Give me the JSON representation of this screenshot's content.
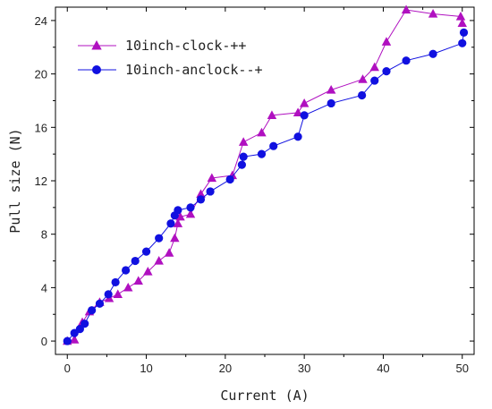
{
  "chart_data": {
    "type": "line",
    "title": "",
    "xlabel": "Current (A)",
    "ylabel": "Pull size (N)",
    "xlim": [
      -1.5,
      51.5
    ],
    "ylim": [
      -1.0,
      25.0
    ],
    "x_ticks": [
      0,
      10,
      20,
      30,
      40,
      50
    ],
    "y_ticks": [
      0,
      4,
      8,
      12,
      16,
      20,
      24
    ],
    "grid": false,
    "legend_position": "top-left",
    "series": [
      {
        "name": "10inch-clock-++",
        "color": "#b010c0",
        "marker": "triangle",
        "x": [
          0.0,
          0.9,
          1.9,
          2.8,
          4.1,
          5.3,
          6.4,
          7.7,
          9.0,
          10.2,
          11.6,
          12.9,
          13.6,
          14.0,
          14.3,
          15.6,
          16.9,
          18.3,
          20.9,
          22.3,
          24.6,
          25.9,
          29.2,
          30.0,
          33.4,
          37.4,
          38.9,
          40.4,
          42.9,
          46.3,
          49.8,
          50.0
        ],
        "y": [
          0.0,
          0.1,
          1.4,
          2.2,
          2.9,
          3.2,
          3.5,
          4.0,
          4.5,
          5.2,
          6.0,
          6.6,
          7.7,
          8.8,
          9.3,
          9.5,
          11.0,
          12.2,
          12.4,
          14.9,
          15.6,
          16.9,
          17.1,
          17.8,
          18.8,
          19.6,
          20.5,
          22.4,
          24.8,
          24.5,
          24.3,
          23.8
        ]
      },
      {
        "name": "10inch-anclock--+",
        "color": "#1010e0",
        "marker": "circle",
        "x": [
          0.0,
          0.9,
          1.6,
          2.2,
          3.1,
          4.1,
          5.2,
          6.1,
          7.4,
          8.6,
          10.0,
          11.6,
          13.1,
          13.6,
          14.0,
          15.6,
          16.9,
          18.1,
          20.6,
          22.1,
          22.3,
          24.6,
          26.1,
          29.2,
          30.0,
          33.4,
          37.3,
          38.9,
          40.4,
          42.9,
          46.3,
          50.0,
          50.2
        ],
        "y": [
          0.0,
          0.6,
          0.9,
          1.3,
          2.3,
          2.8,
          3.5,
          4.4,
          5.3,
          6.0,
          6.7,
          7.7,
          8.8,
          9.4,
          9.8,
          10.0,
          10.6,
          11.2,
          12.1,
          13.2,
          13.8,
          14.0,
          14.6,
          15.3,
          16.9,
          17.8,
          18.4,
          19.5,
          20.2,
          21.0,
          21.5,
          22.3,
          23.1
        ]
      }
    ]
  }
}
